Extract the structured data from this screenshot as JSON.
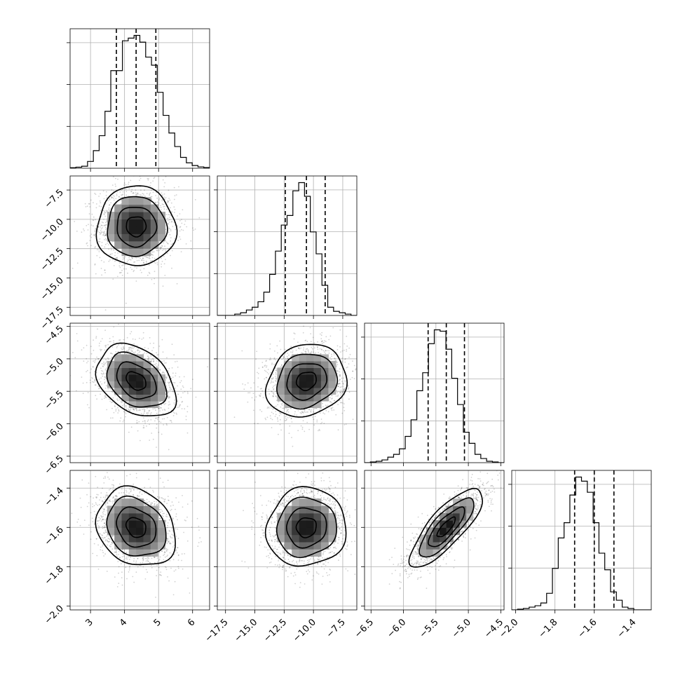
{
  "chart_data": {
    "type": "corner",
    "grid": true,
    "parameters": [
      {
        "range": [
          2.4,
          6.5
        ],
        "ticks": [
          3,
          4,
          5,
          6
        ],
        "tick_labels": [
          "3",
          "4",
          "5",
          "6"
        ],
        "quantiles": [
          3.76,
          4.34,
          4.92
        ],
        "mean": 4.34,
        "sigma": 0.58,
        "hist": [
          0.004,
          0.008,
          0.015,
          0.05,
          0.13,
          0.24,
          0.42,
          0.72,
          0.72,
          0.94,
          0.96,
          0.98,
          0.93,
          0.82,
          0.76,
          0.56,
          0.39,
          0.26,
          0.16,
          0.08,
          0.04,
          0.02,
          0.01,
          0.005
        ]
      },
      {
        "range": [
          -18.2,
          -6.3
        ],
        "ticks": [
          -17.5,
          -15.0,
          -12.5,
          -10.0,
          -7.5
        ],
        "tick_labels": [
          "−17.5",
          "−15.0",
          "−12.5",
          "−10.0",
          "−7.5"
        ],
        "quantiles": [
          -12.4,
          -10.6,
          -9.0
        ],
        "mean": -10.6,
        "sigma": 1.7,
        "hist": [
          0.0,
          0.0,
          0.0,
          0.01,
          0.02,
          0.04,
          0.06,
          0.1,
          0.17,
          0.3,
          0.47,
          0.66,
          0.73,
          0.91,
          0.97,
          0.87,
          0.61,
          0.45,
          0.22,
          0.06,
          0.03,
          0.02,
          0.01,
          0.0
        ]
      },
      {
        "range": [
          -6.6,
          -4.45
        ],
        "ticks": [
          -6.5,
          -6.0,
          -5.5,
          -5.0,
          -4.5
        ],
        "tick_labels": [
          "−6.5",
          "−6.0",
          "−5.5",
          "−5.0",
          "−4.5"
        ],
        "quantiles": [
          -5.62,
          -5.34,
          -5.06
        ],
        "mean": -5.34,
        "sigma": 0.28,
        "hist": [
          0.0,
          0.005,
          0.01,
          0.02,
          0.04,
          0.06,
          0.1,
          0.19,
          0.31,
          0.52,
          0.65,
          0.86,
          0.96,
          0.95,
          0.82,
          0.61,
          0.42,
          0.22,
          0.14,
          0.06,
          0.03,
          0.01,
          0.005,
          0.0
        ]
      },
      {
        "range": [
          -2.02,
          -1.31
        ],
        "ticks": [
          -2.0,
          -1.8,
          -1.6,
          -1.4
        ],
        "tick_labels": [
          "−2.0",
          "−1.8",
          "−1.6",
          "−1.4"
        ],
        "quantiles": [
          -1.7,
          -1.6,
          -1.5
        ],
        "mean": -1.6,
        "sigma": 0.1,
        "hist": [
          0.0,
          0.005,
          0.01,
          0.02,
          0.03,
          0.05,
          0.12,
          0.3,
          0.52,
          0.63,
          0.83,
          0.96,
          0.93,
          0.85,
          0.63,
          0.41,
          0.29,
          0.13,
          0.07,
          0.02,
          0.01,
          0.0,
          0.0,
          0.0
        ]
      }
    ],
    "correlations": {
      "1-0": 0.0,
      "2-0": -0.35,
      "2-1": 0.15,
      "3-0": -0.2,
      "3-1": 0.05,
      "3-2": 0.8
    }
  }
}
